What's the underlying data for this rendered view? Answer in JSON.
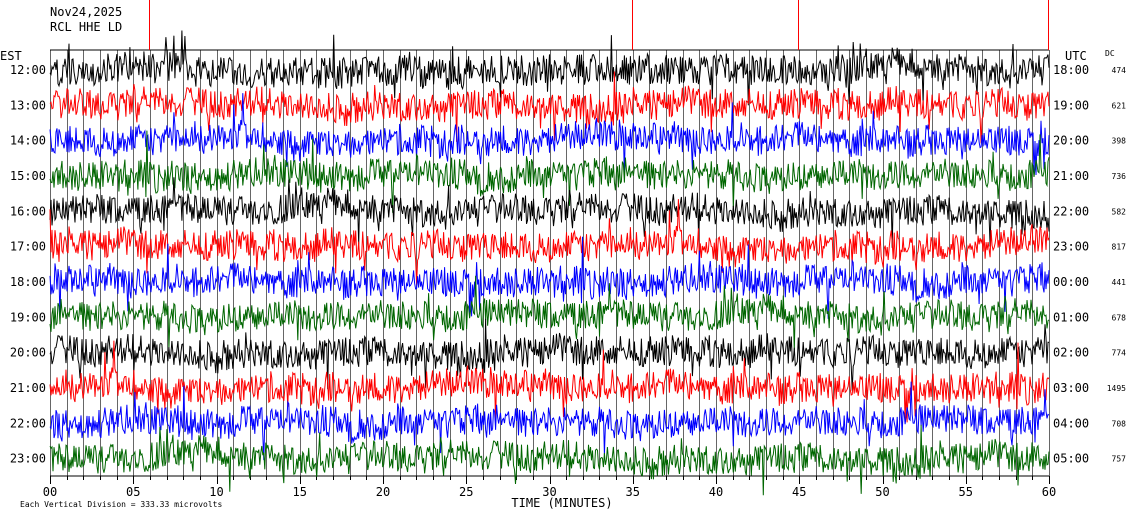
{
  "header": {
    "date": "Nov24,2025",
    "station": "RCL HHE LD"
  },
  "left_axis_title": "EST",
  "right_axis_title": "UTC",
  "dc_title": "DC",
  "x_axis_title": "TIME (MINUTES)",
  "footer_note": "Each Vertical Division = 333.33 microvolts",
  "chart_data": {
    "type": "line",
    "xlabel": "TIME (MINUTES)",
    "xlim": [
      0,
      60
    ],
    "x_ticks": [
      "00",
      "05",
      "10",
      "15",
      "20",
      "25",
      "30",
      "35",
      "40",
      "45",
      "50",
      "55",
      "60"
    ],
    "rows": [
      {
        "est": "12:00",
        "utc": "18:00",
        "dc": "474",
        "color": "#000000"
      },
      {
        "est": "13:00",
        "utc": "19:00",
        "dc": "621",
        "color": "#ff0000"
      },
      {
        "est": "14:00",
        "utc": "20:00",
        "dc": "398",
        "color": "#0000ff"
      },
      {
        "est": "15:00",
        "utc": "21:00",
        "dc": "736",
        "color": "#006600"
      },
      {
        "est": "16:00",
        "utc": "22:00",
        "dc": "582",
        "color": "#000000"
      },
      {
        "est": "17:00",
        "utc": "23:00",
        "dc": "817",
        "color": "#ff0000"
      },
      {
        "est": "18:00",
        "utc": "00:00",
        "dc": "441",
        "color": "#0000ff"
      },
      {
        "est": "19:00",
        "utc": "01:00",
        "dc": "678",
        "color": "#006600"
      },
      {
        "est": "20:00",
        "utc": "02:00",
        "dc": "774",
        "color": "#000000"
      },
      {
        "est": "21:00",
        "utc": "03:00",
        "dc": "1495",
        "color": "#ff0000"
      },
      {
        "est": "22:00",
        "utc": "04:00",
        "dc": "708",
        "color": "#0000ff"
      },
      {
        "est": "23:00",
        "utc": "05:00",
        "dc": "757",
        "color": "#006600"
      }
    ],
    "grid": true,
    "legend": "none"
  }
}
